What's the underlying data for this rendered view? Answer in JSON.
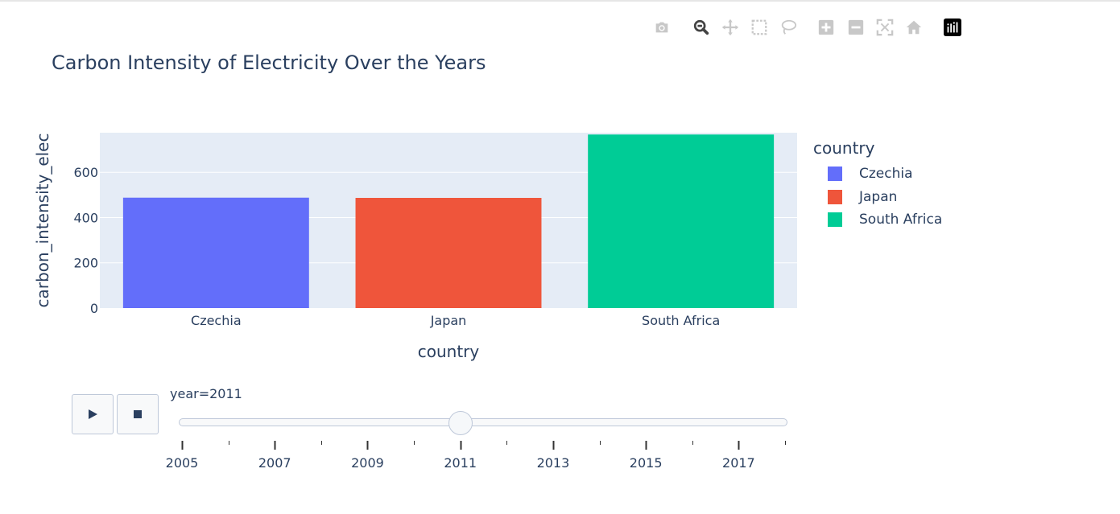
{
  "modebar": {
    "icons": [
      "camera-icon",
      "zoom-icon",
      "pan-icon",
      "box-select-icon",
      "lasso-select-icon",
      "zoom-in-icon",
      "zoom-out-icon",
      "autoscale-icon",
      "reset-axes-icon",
      "plotly-logo-icon"
    ]
  },
  "chart_data": {
    "type": "bar",
    "title": "Carbon Intensity of Electricity Over the Years",
    "xlabel": "country",
    "ylabel": "carbon_intensity_elec",
    "categories": [
      "Czechia",
      "Japan",
      "South Africa"
    ],
    "values": [
      488,
      487,
      767
    ],
    "colors": [
      "#636efa",
      "#ef553b",
      "#00cc96"
    ],
    "ylim": [
      0,
      775
    ],
    "yticks": [
      0,
      200,
      400,
      600
    ],
    "ytick_labels": [
      "0",
      "200",
      "400",
      "600"
    ],
    "legend": {
      "title": "country",
      "items": [
        "Czechia",
        "Japan",
        "South Africa"
      ],
      "placement": "right"
    },
    "grid": true,
    "plot_bgcolor": "#e5ecf6"
  },
  "slider": {
    "current_label": "year=2011",
    "current_year": 2011,
    "min_year": 2005,
    "max_year": 2018,
    "major_tick_labels": [
      "2005",
      "2007",
      "2009",
      "2011",
      "2013",
      "2015",
      "2017"
    ],
    "play_icon": "play-icon",
    "stop_icon": "stop-icon"
  }
}
